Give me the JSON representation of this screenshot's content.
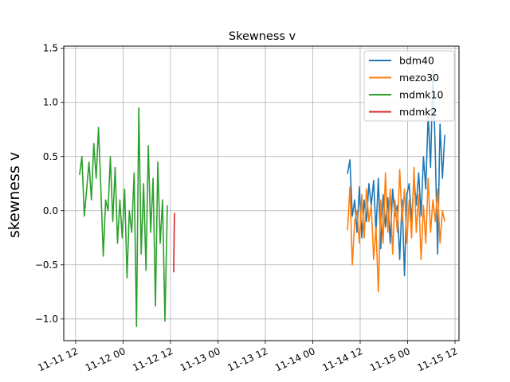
{
  "chart_data": {
    "type": "line",
    "title": "Skewness v",
    "xlabel": "",
    "ylabel": "skewness v",
    "x_unit": "datetime",
    "xlim": [
      "2023-11-11 09:00",
      "2023-11-15 13:00"
    ],
    "ylim": [
      -1.2,
      1.52
    ],
    "x_ticks": [
      {
        "value": "2023-11-11 12:00",
        "label": "11-11 12"
      },
      {
        "value": "2023-11-12 00:00",
        "label": "11-12 00"
      },
      {
        "value": "2023-11-12 12:00",
        "label": "11-12 12"
      },
      {
        "value": "2023-11-13 00:00",
        "label": "11-13 00"
      },
      {
        "value": "2023-11-13 12:00",
        "label": "11-13 12"
      },
      {
        "value": "2023-11-14 00:00",
        "label": "11-14 00"
      },
      {
        "value": "2023-11-14 12:00",
        "label": "11-14 12"
      },
      {
        "value": "2023-11-15 00:00",
        "label": "11-15 00"
      },
      {
        "value": "2023-11-15 12:00",
        "label": "11-15 12"
      }
    ],
    "y_ticks": [
      {
        "value": 1.5,
        "label": "1.5"
      },
      {
        "value": 1.0,
        "label": "1.0"
      },
      {
        "value": 0.5,
        "label": "0.5"
      },
      {
        "value": 0.0,
        "label": "0.0"
      },
      {
        "value": -0.5,
        "label": "−0.5"
      },
      {
        "value": -1.0,
        "label": "−1.0"
      }
    ],
    "grid": true,
    "legend_position": "top-right",
    "series": [
      {
        "name": "bdm40",
        "color": "#1f77b4",
        "points": [
          [
            "2023-11-14 08:48",
            0.34
          ],
          [
            "2023-11-14 09:24",
            0.47
          ],
          [
            "2023-11-14 10:00",
            -0.05
          ],
          [
            "2023-11-14 10:36",
            0.1
          ],
          [
            "2023-11-14 11:12",
            -0.2
          ],
          [
            "2023-11-14 11:48",
            0.22
          ],
          [
            "2023-11-14 12:24",
            -0.25
          ],
          [
            "2023-11-14 13:00",
            0.1
          ],
          [
            "2023-11-14 13:36",
            -0.1
          ],
          [
            "2023-11-14 14:12",
            0.25
          ],
          [
            "2023-11-14 14:48",
            0.05
          ],
          [
            "2023-11-14 15:24",
            0.28
          ],
          [
            "2023-11-14 16:00",
            -0.2
          ],
          [
            "2023-11-14 16:36",
            0.3
          ],
          [
            "2023-11-14 17:12",
            -0.35
          ],
          [
            "2023-11-14 17:48",
            0.15
          ],
          [
            "2023-11-14 18:24",
            -0.15
          ],
          [
            "2023-11-14 19:00",
            0.12
          ],
          [
            "2023-11-14 19:36",
            -0.3
          ],
          [
            "2023-11-14 20:12",
            0.2
          ],
          [
            "2023-11-14 20:48",
            -0.05
          ],
          [
            "2023-11-14 21:24",
            0.05
          ],
          [
            "2023-11-14 22:00",
            -0.45
          ],
          [
            "2023-11-14 22:36",
            0.1
          ],
          [
            "2023-11-14 23:12",
            -0.6
          ],
          [
            "2023-11-14 23:48",
            0.15
          ],
          [
            "2023-11-15 00:24",
            0.25
          ],
          [
            "2023-11-15 01:00",
            -0.1
          ],
          [
            "2023-11-15 01:36",
            0.3
          ],
          [
            "2023-11-15 02:12",
            0.05
          ],
          [
            "2023-11-15 02:48",
            0.35
          ],
          [
            "2023-11-15 03:24",
            -0.05
          ],
          [
            "2023-11-15 04:00",
            0.5
          ],
          [
            "2023-11-15 04:36",
            0.2
          ],
          [
            "2023-11-15 05:12",
            0.9
          ],
          [
            "2023-11-15 05:48",
            0.4
          ],
          [
            "2023-11-15 06:24",
            1.3
          ],
          [
            "2023-11-15 07:00",
            0.55
          ],
          [
            "2023-11-15 07:36",
            -0.4
          ],
          [
            "2023-11-15 08:12",
            0.8
          ],
          [
            "2023-11-15 08:48",
            0.3
          ],
          [
            "2023-11-15 09:24",
            0.7
          ]
        ]
      },
      {
        "name": "mezo30",
        "color": "#ff7f0e",
        "points": [
          [
            "2023-11-14 08:48",
            -0.18
          ],
          [
            "2023-11-14 09:24",
            0.22
          ],
          [
            "2023-11-14 10:00",
            -0.5
          ],
          [
            "2023-11-14 10:36",
            -0.1
          ],
          [
            "2023-11-14 11:12",
            0.0
          ],
          [
            "2023-11-14 11:48",
            -0.3
          ],
          [
            "2023-11-14 12:24",
            0.15
          ],
          [
            "2023-11-14 13:00",
            -0.25
          ],
          [
            "2023-11-14 13:36",
            0.2
          ],
          [
            "2023-11-14 14:12",
            -0.1
          ],
          [
            "2023-11-14 14:48",
            0.05
          ],
          [
            "2023-11-14 15:24",
            -0.45
          ],
          [
            "2023-11-14 16:00",
            -0.15
          ],
          [
            "2023-11-14 16:36",
            -0.75
          ],
          [
            "2023-11-14 17:12",
            0.1
          ],
          [
            "2023-11-14 17:48",
            -0.3
          ],
          [
            "2023-11-14 18:24",
            0.35
          ],
          [
            "2023-11-14 19:00",
            -0.2
          ],
          [
            "2023-11-14 19:36",
            0.2
          ],
          [
            "2023-11-14 20:12",
            -0.4
          ],
          [
            "2023-11-14 20:48",
            0.1
          ],
          [
            "2023-11-14 21:24",
            -0.2
          ],
          [
            "2023-11-14 22:00",
            0.38
          ],
          [
            "2023-11-14 22:36",
            -0.1
          ],
          [
            "2023-11-14 23:12",
            0.2
          ],
          [
            "2023-11-14 23:48",
            -0.3
          ],
          [
            "2023-11-15 00:24",
            0.1
          ],
          [
            "2023-11-15 01:00",
            -0.25
          ],
          [
            "2023-11-15 01:36",
            0.4
          ],
          [
            "2023-11-15 02:12",
            -0.2
          ],
          [
            "2023-11-15 02:48",
            0.15
          ],
          [
            "2023-11-15 03:24",
            -0.45
          ],
          [
            "2023-11-15 04:00",
            0.05
          ],
          [
            "2023-11-15 04:36",
            -0.3
          ],
          [
            "2023-11-15 05:12",
            0.3
          ],
          [
            "2023-11-15 05:48",
            -0.2
          ],
          [
            "2023-11-15 06:24",
            0.1
          ],
          [
            "2023-11-15 07:00",
            -0.1
          ],
          [
            "2023-11-15 07:36",
            0.2
          ],
          [
            "2023-11-15 08:12",
            -0.3
          ],
          [
            "2023-11-15 08:48",
            0.0
          ],
          [
            "2023-11-15 09:24",
            -0.1
          ]
        ]
      },
      {
        "name": "mdmk10",
        "color": "#2ca02c",
        "points": [
          [
            "2023-11-11 13:00",
            0.33
          ],
          [
            "2023-11-11 13:36",
            0.5
          ],
          [
            "2023-11-11 14:12",
            -0.05
          ],
          [
            "2023-11-11 14:48",
            0.2
          ],
          [
            "2023-11-11 15:24",
            0.45
          ],
          [
            "2023-11-11 16:00",
            0.1
          ],
          [
            "2023-11-11 16:36",
            0.62
          ],
          [
            "2023-11-11 17:12",
            0.3
          ],
          [
            "2023-11-11 17:48",
            0.77
          ],
          [
            "2023-11-11 18:24",
            0.2
          ],
          [
            "2023-11-11 19:00",
            -0.42
          ],
          [
            "2023-11-11 19:36",
            0.1
          ],
          [
            "2023-11-11 20:12",
            0.0
          ],
          [
            "2023-11-11 20:48",
            0.5
          ],
          [
            "2023-11-11 21:24",
            -0.1
          ],
          [
            "2023-11-11 22:00",
            0.4
          ],
          [
            "2023-11-11 22:36",
            -0.3
          ],
          [
            "2023-11-11 23:12",
            0.1
          ],
          [
            "2023-11-11 23:48",
            -0.25
          ],
          [
            "2023-11-12 00:24",
            0.2
          ],
          [
            "2023-11-12 01:00",
            -0.62
          ],
          [
            "2023-11-12 01:36",
            0.0
          ],
          [
            "2023-11-12 02:12",
            -0.2
          ],
          [
            "2023-11-12 02:48",
            0.35
          ],
          [
            "2023-11-12 03:24",
            -1.07
          ],
          [
            "2023-11-12 04:00",
            0.95
          ],
          [
            "2023-11-12 04:36",
            -0.4
          ],
          [
            "2023-11-12 05:12",
            0.25
          ],
          [
            "2023-11-12 05:48",
            -0.55
          ],
          [
            "2023-11-12 06:24",
            0.6
          ],
          [
            "2023-11-12 07:00",
            -0.2
          ],
          [
            "2023-11-12 07:36",
            0.3
          ],
          [
            "2023-11-12 08:12",
            -0.88
          ],
          [
            "2023-11-12 08:48",
            0.45
          ],
          [
            "2023-11-12 09:24",
            -0.3
          ],
          [
            "2023-11-12 10:00",
            0.1
          ],
          [
            "2023-11-12 10:36",
            -1.02
          ],
          [
            "2023-11-12 11:12",
            0.05
          ]
        ]
      },
      {
        "name": "mdmk2",
        "color": "#d62728",
        "points": [
          [
            "2023-11-12 12:48",
            -0.57
          ],
          [
            "2023-11-12 13:00",
            -0.02
          ]
        ]
      }
    ]
  }
}
